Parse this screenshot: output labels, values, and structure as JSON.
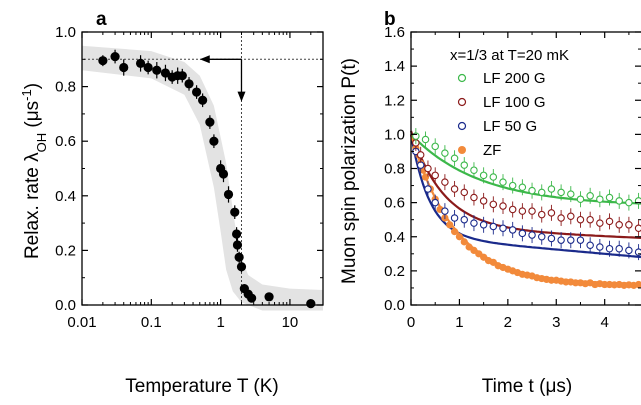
{
  "chart_data": [
    {
      "panel": "a",
      "type": "scatter",
      "xscale": "log",
      "xlim": [
        0.01,
        30
      ],
      "ylim": [
        0.0,
        1.0
      ],
      "xticks": [
        0.01,
        0.1,
        1,
        10
      ],
      "xtick_labels": [
        "0.01",
        "0.1",
        "1",
        "10"
      ],
      "yticks": [
        0.0,
        0.2,
        0.4,
        0.6,
        0.8,
        1.0
      ],
      "ytick_labels": [
        "0.0",
        "0.2",
        "0.4",
        "0.6",
        "0.8",
        "1.0"
      ],
      "xlabel": "Temperature T (K)",
      "ylabel_main": "Relax. rate λ",
      "ylabel_sub": "OH",
      "ylabel_unit": " (μs",
      "ylabel_sup": "-1",
      "ylabel_end": ")",
      "grid": false,
      "marker_color": "#000000",
      "band_color": "#e3e3e3",
      "points": [
        {
          "x": 0.02,
          "y": 0.895,
          "err": 0.02
        },
        {
          "x": 0.03,
          "y": 0.91,
          "err": 0.025
        },
        {
          "x": 0.04,
          "y": 0.87,
          "err": 0.03
        },
        {
          "x": 0.07,
          "y": 0.885,
          "err": 0.03
        },
        {
          "x": 0.09,
          "y": 0.87,
          "err": 0.025
        },
        {
          "x": 0.12,
          "y": 0.86,
          "err": 0.03
        },
        {
          "x": 0.16,
          "y": 0.85,
          "err": 0.03
        },
        {
          "x": 0.2,
          "y": 0.835,
          "err": 0.025
        },
        {
          "x": 0.24,
          "y": 0.84,
          "err": 0.03
        },
        {
          "x": 0.28,
          "y": 0.84,
          "err": 0.025
        },
        {
          "x": 0.35,
          "y": 0.81,
          "err": 0.025
        },
        {
          "x": 0.45,
          "y": 0.78,
          "err": 0.025
        },
        {
          "x": 0.55,
          "y": 0.75,
          "err": 0.025
        },
        {
          "x": 0.7,
          "y": 0.67,
          "err": 0.025
        },
        {
          "x": 0.8,
          "y": 0.6,
          "err": 0.025
        },
        {
          "x": 1.0,
          "y": 0.5,
          "err": 0.03
        },
        {
          "x": 1.1,
          "y": 0.48,
          "err": 0.03
        },
        {
          "x": 1.3,
          "y": 0.405,
          "err": 0.03
        },
        {
          "x": 1.6,
          "y": 0.34,
          "err": 0.025
        },
        {
          "x": 1.7,
          "y": 0.26,
          "err": 0.025
        },
        {
          "x": 1.75,
          "y": 0.22,
          "err": 0.025
        },
        {
          "x": 1.85,
          "y": 0.175,
          "err": 0.02
        },
        {
          "x": 2.0,
          "y": 0.14,
          "err": 0.02
        },
        {
          "x": 2.2,
          "y": 0.06,
          "err": 0.015
        },
        {
          "x": 2.5,
          "y": 0.04,
          "err": 0.015
        },
        {
          "x": 2.8,
          "y": 0.025,
          "err": 0.015
        },
        {
          "x": 5.0,
          "y": 0.03,
          "err": 0.015
        },
        {
          "x": 20.0,
          "y": 0.005,
          "err": 0.01
        }
      ],
      "band": {
        "upper": [
          [
            0.01,
            0.95
          ],
          [
            0.1,
            0.93
          ],
          [
            0.3,
            0.89
          ],
          [
            0.5,
            0.84
          ],
          [
            0.8,
            0.73
          ],
          [
            1.2,
            0.52
          ],
          [
            1.6,
            0.3
          ],
          [
            2.0,
            0.17
          ],
          [
            2.5,
            0.11
          ],
          [
            4.0,
            0.075
          ],
          [
            10.0,
            0.06
          ],
          [
            30.0,
            0.055
          ]
        ],
        "lower": [
          [
            0.01,
            0.86
          ],
          [
            0.1,
            0.83
          ],
          [
            0.3,
            0.77
          ],
          [
            0.5,
            0.66
          ],
          [
            0.8,
            0.43
          ],
          [
            1.0,
            0.27
          ],
          [
            1.2,
            0.13
          ],
          [
            1.5,
            0.05
          ],
          [
            2.0,
            0.01
          ],
          [
            4.0,
            -0.02
          ],
          [
            30.0,
            -0.02
          ]
        ]
      },
      "guides": {
        "y": 0.9,
        "x": 2.0
      }
    },
    {
      "panel": "b",
      "type": "scatter",
      "xlim": [
        0,
        4.75
      ],
      "ylim": [
        0.0,
        1.6
      ],
      "xticks": [
        0,
        1,
        2,
        3,
        4
      ],
      "xtick_labels": [
        "0",
        "1",
        "2",
        "3",
        "4"
      ],
      "yticks": [
        0.0,
        0.2,
        0.4,
        0.6,
        0.8,
        1.0,
        1.2,
        1.4,
        1.6
      ],
      "ytick_labels": [
        "0.0",
        "0.2",
        "0.4",
        "0.6",
        "0.8",
        "1.0",
        "1.2",
        "1.4",
        "1.6"
      ],
      "xlabel": "Time t (μs)",
      "ylabel": "Muon spin polarization P(t)",
      "legend_title": "x=1/3 at T=20 mK",
      "legend_position": "top-right",
      "grid": false,
      "series": [
        {
          "name": "LF 200 G",
          "color": "#3cb84a",
          "marker": "open",
          "fit": {
            "a": 0.42,
            "rate": 0.7,
            "c": 0.58
          },
          "x": [
            0.1,
            0.3,
            0.5,
            0.7,
            0.9,
            1.1,
            1.3,
            1.5,
            1.7,
            1.9,
            2.1,
            2.3,
            2.5,
            2.7,
            2.9,
            3.1,
            3.3,
            3.5,
            3.7,
            3.9,
            4.1,
            4.3,
            4.5,
            4.7
          ],
          "y": [
            0.99,
            0.97,
            0.93,
            0.89,
            0.86,
            0.82,
            0.79,
            0.76,
            0.75,
            0.72,
            0.7,
            0.69,
            0.67,
            0.66,
            0.68,
            0.66,
            0.65,
            0.62,
            0.64,
            0.62,
            0.63,
            0.61,
            0.6,
            0.61
          ]
        },
        {
          "name": "LF 100 G",
          "color": "#8b1a1a",
          "marker": "open",
          "fit": {
            "a": 0.57,
            "rate": 1.5,
            "c": 0.45,
            "b": 0.012
          },
          "x": [
            0.1,
            0.2,
            0.35,
            0.5,
            0.7,
            0.9,
            1.1,
            1.3,
            1.5,
            1.7,
            1.9,
            2.1,
            2.3,
            2.5,
            2.7,
            2.9,
            3.1,
            3.3,
            3.5,
            3.7,
            3.9,
            4.1,
            4.3,
            4.5,
            4.7
          ],
          "y": [
            0.95,
            0.88,
            0.8,
            0.76,
            0.72,
            0.68,
            0.66,
            0.63,
            0.61,
            0.59,
            0.58,
            0.56,
            0.55,
            0.55,
            0.53,
            0.54,
            0.51,
            0.52,
            0.5,
            0.5,
            0.48,
            0.49,
            0.47,
            0.47,
            0.45
          ]
        },
        {
          "name": "LF 50 G",
          "color": "#1a2a8b",
          "marker": "open",
          "fit": {
            "a": 0.6,
            "rate": 2.6,
            "c": 0.4,
            "b": 0.025
          },
          "x": [
            0.1,
            0.2,
            0.35,
            0.5,
            0.7,
            0.9,
            1.1,
            1.3,
            1.5,
            1.7,
            1.9,
            2.1,
            2.3,
            2.5,
            2.7,
            2.9,
            3.1,
            3.3,
            3.5,
            3.7,
            3.9,
            4.1,
            4.3,
            4.5,
            4.7
          ],
          "y": [
            0.9,
            0.82,
            0.68,
            0.6,
            0.55,
            0.51,
            0.5,
            0.48,
            0.47,
            0.46,
            0.45,
            0.44,
            0.42,
            0.41,
            0.4,
            0.39,
            0.38,
            0.38,
            0.38,
            0.35,
            0.34,
            0.33,
            0.33,
            0.32,
            0.31
          ]
        },
        {
          "name": "ZF",
          "color": "#f28a3b",
          "marker": "filled",
          "fit": {
            "a": 0.88,
            "rate": 1.1,
            "c": 0.12
          },
          "x": [
            0.1,
            0.15,
            0.2,
            0.25,
            0.3,
            0.4,
            0.5,
            0.6,
            0.7,
            0.8,
            0.9,
            1.0,
            1.1,
            1.2,
            1.3,
            1.4,
            1.5,
            1.6,
            1.7,
            1.8,
            1.9,
            2.0,
            2.1,
            2.2,
            2.3,
            2.4,
            2.5,
            2.6,
            2.7,
            2.8,
            2.9,
            3.0,
            3.1,
            3.2,
            3.3,
            3.4,
            3.5,
            3.6,
            3.7,
            3.8,
            3.9,
            4.0,
            4.1,
            4.2,
            4.3,
            4.4,
            4.5,
            4.6,
            4.7
          ],
          "y": [
            0.92,
            0.88,
            0.83,
            0.79,
            0.75,
            0.68,
            0.62,
            0.56,
            0.51,
            0.47,
            0.43,
            0.4,
            0.37,
            0.34,
            0.32,
            0.3,
            0.28,
            0.26,
            0.25,
            0.23,
            0.22,
            0.21,
            0.2,
            0.19,
            0.18,
            0.175,
            0.17,
            0.16,
            0.155,
            0.15,
            0.145,
            0.145,
            0.14,
            0.135,
            0.135,
            0.13,
            0.13,
            0.125,
            0.13,
            0.12,
            0.125,
            0.12,
            0.12,
            0.118,
            0.12,
            0.115,
            0.118,
            0.115,
            0.12
          ]
        }
      ]
    }
  ]
}
